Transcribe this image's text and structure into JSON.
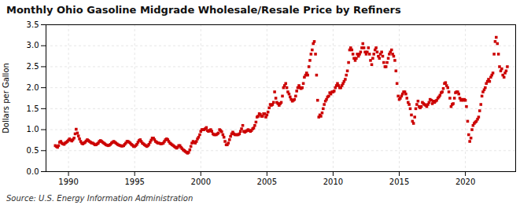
{
  "chart_data": {
    "type": "scatter",
    "title": "Monthly Ohio Gasoline Midgrade Wholesale/Resale Price by Refiners",
    "ylabel": "Dollars per Gallon",
    "source": "Source: U.S. Energy Information Administration",
    "color": "#cc0000",
    "marker": "square",
    "grid": true,
    "xlim": [
      1988.3,
      2023.8
    ],
    "ylim": [
      0.0,
      3.5
    ],
    "xticks": [
      1990,
      1995,
      2000,
      2005,
      2010,
      2015,
      2020
    ],
    "yticks": [
      {
        "value": 0.0,
        "label": "0.0"
      },
      0.5,
      {
        "value": 1.0,
        "label": "1.0"
      },
      1.5,
      {
        "value": 2.0,
        "label": "2.0"
      },
      2.5,
      {
        "value": 3.0,
        "label": "3.0"
      },
      3.5
    ],
    "x": [
      1989.0,
      1989.08,
      1989.17,
      1989.25,
      1989.33,
      1989.42,
      1989.5,
      1989.58,
      1989.67,
      1989.75,
      1989.83,
      1989.92,
      1990.0,
      1990.08,
      1990.17,
      1990.25,
      1990.33,
      1990.42,
      1990.5,
      1990.58,
      1990.67,
      1990.75,
      1990.83,
      1990.92,
      1991.0,
      1991.08,
      1991.17,
      1991.25,
      1991.33,
      1991.42,
      1991.5,
      1991.58,
      1991.67,
      1991.75,
      1991.83,
      1991.92,
      1992.0,
      1992.08,
      1992.17,
      1992.25,
      1992.33,
      1992.42,
      1992.5,
      1992.58,
      1992.67,
      1992.75,
      1992.83,
      1992.92,
      1993.0,
      1993.08,
      1993.17,
      1993.25,
      1993.33,
      1993.42,
      1993.5,
      1993.58,
      1993.67,
      1993.75,
      1993.83,
      1993.92,
      1994.0,
      1994.08,
      1994.17,
      1994.25,
      1994.33,
      1994.42,
      1994.5,
      1994.58,
      1994.67,
      1994.75,
      1994.83,
      1994.92,
      1995.0,
      1995.08,
      1995.17,
      1995.25,
      1995.33,
      1995.42,
      1995.5,
      1995.58,
      1995.67,
      1995.75,
      1995.83,
      1995.92,
      1996.0,
      1996.08,
      1996.17,
      1996.25,
      1996.33,
      1996.42,
      1996.5,
      1996.58,
      1996.67,
      1996.75,
      1996.83,
      1996.92,
      1997.0,
      1997.08,
      1997.17,
      1997.25,
      1997.33,
      1997.42,
      1997.5,
      1997.58,
      1997.67,
      1997.75,
      1997.83,
      1997.92,
      1998.0,
      1998.08,
      1998.17,
      1998.25,
      1998.33,
      1998.42,
      1998.5,
      1998.58,
      1998.67,
      1998.75,
      1998.83,
      1998.92,
      1999.0,
      1999.08,
      1999.17,
      1999.25,
      1999.33,
      1999.42,
      1999.5,
      1999.58,
      1999.67,
      1999.75,
      1999.83,
      1999.92,
      2000.0,
      2000.08,
      2000.17,
      2000.25,
      2000.33,
      2000.42,
      2000.5,
      2000.58,
      2000.67,
      2000.75,
      2000.83,
      2000.92,
      2001.0,
      2001.08,
      2001.17,
      2001.25,
      2001.33,
      2001.42,
      2001.5,
      2001.58,
      2001.67,
      2001.75,
      2001.83,
      2001.92,
      2002.0,
      2002.08,
      2002.17,
      2002.25,
      2002.33,
      2002.42,
      2002.5,
      2002.58,
      2002.67,
      2002.75,
      2002.83,
      2002.92,
      2003.0,
      2003.08,
      2003.17,
      2003.25,
      2003.33,
      2003.42,
      2003.5,
      2003.58,
      2003.67,
      2003.75,
      2003.83,
      2003.92,
      2004.0,
      2004.08,
      2004.17,
      2004.25,
      2004.33,
      2004.42,
      2004.5,
      2004.58,
      2004.67,
      2004.75,
      2004.83,
      2004.92,
      2005.0,
      2005.08,
      2005.17,
      2005.25,
      2005.33,
      2005.42,
      2005.5,
      2005.58,
      2005.67,
      2005.75,
      2005.83,
      2005.92,
      2006.0,
      2006.08,
      2006.17,
      2006.25,
      2006.33,
      2006.42,
      2006.5,
      2006.58,
      2006.67,
      2006.75,
      2006.83,
      2006.92,
      2007.0,
      2007.08,
      2007.17,
      2007.25,
      2007.33,
      2007.42,
      2007.5,
      2007.58,
      2007.67,
      2007.75,
      2007.83,
      2007.92,
      2008.0,
      2008.08,
      2008.17,
      2008.25,
      2008.33,
      2008.42,
      2008.5,
      2008.58,
      2008.67,
      2008.75,
      2008.83,
      2008.92,
      2009.0,
      2009.08,
      2009.17,
      2009.25,
      2009.33,
      2009.42,
      2009.5,
      2009.58,
      2009.67,
      2009.75,
      2009.83,
      2009.92,
      2010.0,
      2010.08,
      2010.17,
      2010.25,
      2010.33,
      2010.42,
      2010.5,
      2010.58,
      2010.67,
      2010.75,
      2010.83,
      2010.92,
      2011.0,
      2011.08,
      2011.17,
      2011.25,
      2011.33,
      2011.42,
      2011.5,
      2011.58,
      2011.67,
      2011.75,
      2011.83,
      2011.92,
      2012.0,
      2012.08,
      2012.17,
      2012.25,
      2012.33,
      2012.42,
      2012.5,
      2012.58,
      2012.67,
      2012.75,
      2012.83,
      2012.92,
      2013.0,
      2013.08,
      2013.17,
      2013.25,
      2013.33,
      2013.42,
      2013.5,
      2013.58,
      2013.67,
      2013.75,
      2013.83,
      2013.92,
      2014.0,
      2014.08,
      2014.17,
      2014.25,
      2014.33,
      2014.42,
      2014.5,
      2014.58,
      2014.67,
      2014.75,
      2014.83,
      2014.92,
      2015.0,
      2015.08,
      2015.17,
      2015.25,
      2015.33,
      2015.42,
      2015.5,
      2015.58,
      2015.67,
      2015.75,
      2015.83,
      2015.92,
      2016.0,
      2016.08,
      2016.17,
      2016.25,
      2016.33,
      2016.42,
      2016.5,
      2016.58,
      2016.67,
      2016.75,
      2016.83,
      2016.92,
      2017.0,
      2017.08,
      2017.17,
      2017.25,
      2017.33,
      2017.42,
      2017.5,
      2017.58,
      2017.67,
      2017.75,
      2017.83,
      2017.92,
      2018.0,
      2018.08,
      2018.17,
      2018.25,
      2018.33,
      2018.42,
      2018.5,
      2018.58,
      2018.67,
      2018.75,
      2018.83,
      2018.92,
      2019.0,
      2019.08,
      2019.17,
      2019.25,
      2019.33,
      2019.42,
      2019.5,
      2019.58,
      2019.67,
      2019.75,
      2019.83,
      2019.92,
      2020.0,
      2020.08,
      2020.17,
      2020.25,
      2020.33,
      2020.42,
      2020.5,
      2020.58,
      2020.67,
      2020.75,
      2020.83,
      2020.92,
      2021.0,
      2021.08,
      2021.17,
      2021.25,
      2021.33,
      2021.42,
      2021.5,
      2021.58,
      2021.67,
      2021.75,
      2021.83,
      2021.92,
      2022.0,
      2022.08,
      2022.17,
      2022.25,
      2022.33,
      2022.42,
      2022.5,
      2022.58,
      2022.67,
      2022.75,
      2022.83,
      2022.92,
      2023.0,
      2023.08,
      2023.17
    ],
    "values": [
      0.62,
      0.6,
      0.58,
      0.62,
      0.7,
      0.72,
      0.68,
      0.66,
      0.65,
      0.68,
      0.7,
      0.72,
      0.75,
      0.78,
      0.75,
      0.73,
      0.76,
      0.8,
      0.9,
      1.01,
      0.92,
      0.85,
      0.78,
      0.72,
      0.68,
      0.66,
      0.68,
      0.7,
      0.73,
      0.76,
      0.74,
      0.72,
      0.7,
      0.68,
      0.68,
      0.66,
      0.64,
      0.64,
      0.66,
      0.68,
      0.72,
      0.74,
      0.72,
      0.7,
      0.68,
      0.66,
      0.64,
      0.63,
      0.62,
      0.63,
      0.65,
      0.68,
      0.7,
      0.72,
      0.7,
      0.68,
      0.66,
      0.64,
      0.63,
      0.62,
      0.61,
      0.61,
      0.62,
      0.65,
      0.68,
      0.72,
      0.72,
      0.7,
      0.68,
      0.65,
      0.63,
      0.6,
      0.6,
      0.62,
      0.65,
      0.7,
      0.74,
      0.76,
      0.72,
      0.68,
      0.66,
      0.64,
      0.62,
      0.6,
      0.62,
      0.65,
      0.7,
      0.75,
      0.8,
      0.8,
      0.76,
      0.72,
      0.7,
      0.68,
      0.68,
      0.67,
      0.66,
      0.67,
      0.68,
      0.72,
      0.76,
      0.78,
      0.76,
      0.72,
      0.68,
      0.66,
      0.64,
      0.62,
      0.6,
      0.58,
      0.56,
      0.58,
      0.62,
      0.62,
      0.58,
      0.55,
      0.52,
      0.5,
      0.48,
      0.46,
      0.44,
      0.46,
      0.52,
      0.6,
      0.68,
      0.72,
      0.7,
      0.68,
      0.72,
      0.78,
      0.82,
      0.88,
      0.96,
      1.0,
      1.0,
      1.0,
      1.02,
      1.05,
      0.98,
      0.96,
      0.98,
      1.0,
      0.96,
      0.9,
      0.88,
      0.88,
      0.88,
      0.9,
      0.92,
      1.0,
      0.98,
      0.95,
      0.88,
      0.82,
      0.72,
      0.64,
      0.64,
      0.68,
      0.76,
      0.84,
      0.9,
      0.94,
      0.9,
      0.88,
      0.88,
      0.88,
      0.88,
      0.9,
      0.96,
      1.02,
      1.1,
      0.96,
      0.94,
      0.96,
      0.98,
      1.0,
      0.98,
      0.96,
      0.98,
      1.02,
      1.04,
      1.1,
      1.18,
      1.3,
      1.32,
      1.38,
      1.36,
      1.32,
      1.32,
      1.38,
      1.38,
      1.3,
      1.35,
      1.42,
      1.52,
      1.6,
      1.58,
      1.6,
      1.65,
      1.9,
      1.75,
      1.65,
      1.62,
      1.58,
      1.62,
      1.65,
      1.8,
      2.0,
      2.05,
      2.1,
      2.0,
      1.9,
      1.85,
      1.78,
      1.72,
      1.68,
      1.7,
      1.72,
      1.8,
      1.92,
      2.0,
      2.05,
      2.0,
      1.98,
      2.0,
      2.1,
      2.25,
      2.3,
      2.35,
      2.3,
      2.5,
      2.65,
      2.8,
      2.9,
      3.05,
      3.1,
      2.8,
      2.3,
      1.7,
      1.3,
      1.35,
      1.32,
      1.4,
      1.5,
      1.6,
      1.68,
      1.72,
      1.78,
      1.8,
      1.88,
      1.85,
      1.9,
      1.9,
      1.92,
      2.0,
      2.05,
      2.1,
      2.05,
      2.0,
      2.0,
      2.05,
      2.1,
      2.15,
      2.2,
      2.3,
      2.4,
      2.6,
      2.9,
      2.95,
      2.9,
      2.8,
      2.7,
      2.65,
      2.7,
      2.8,
      2.75,
      2.8,
      2.85,
      2.95,
      3.05,
      2.95,
      2.85,
      2.8,
      2.85,
      2.95,
      2.8,
      2.65,
      2.55,
      2.7,
      2.8,
      2.9,
      2.95,
      2.85,
      2.75,
      2.7,
      2.8,
      2.85,
      2.75,
      2.6,
      2.5,
      2.5,
      2.6,
      2.7,
      2.8,
      2.85,
      2.9,
      2.8,
      2.75,
      2.65,
      2.4,
      2.1,
      1.8,
      1.72,
      1.75,
      1.8,
      1.85,
      1.9,
      1.9,
      1.85,
      1.75,
      1.65,
      1.6,
      1.5,
      1.35,
      1.2,
      1.15,
      1.3,
      1.5,
      1.6,
      1.68,
      1.55,
      1.52,
      1.55,
      1.65,
      1.62,
      1.6,
      1.58,
      1.55,
      1.6,
      1.65,
      1.72,
      1.7,
      1.62,
      1.68,
      1.65,
      1.68,
      1.7,
      1.75,
      1.78,
      1.82,
      1.88,
      1.9,
      1.98,
      2.1,
      2.12,
      2.05,
      2.0,
      1.9,
      1.75,
      1.55,
      1.6,
      1.62,
      1.75,
      1.88,
      1.9,
      1.9,
      1.85,
      1.75,
      1.7,
      1.72,
      1.7,
      1.72,
      1.7,
      1.55,
      1.2,
      0.88,
      0.72,
      0.8,
      1.0,
      1.1,
      1.15,
      1.18,
      1.2,
      1.25,
      1.3,
      1.45,
      1.6,
      1.8,
      1.9,
      1.95,
      2.0,
      2.1,
      2.15,
      2.2,
      2.15,
      2.25,
      2.3,
      2.35,
      2.8,
      3.1,
      3.2,
      3.05,
      2.8,
      2.5,
      2.4,
      2.45,
      2.3,
      2.25,
      2.35,
      2.4,
      2.5
    ]
  }
}
